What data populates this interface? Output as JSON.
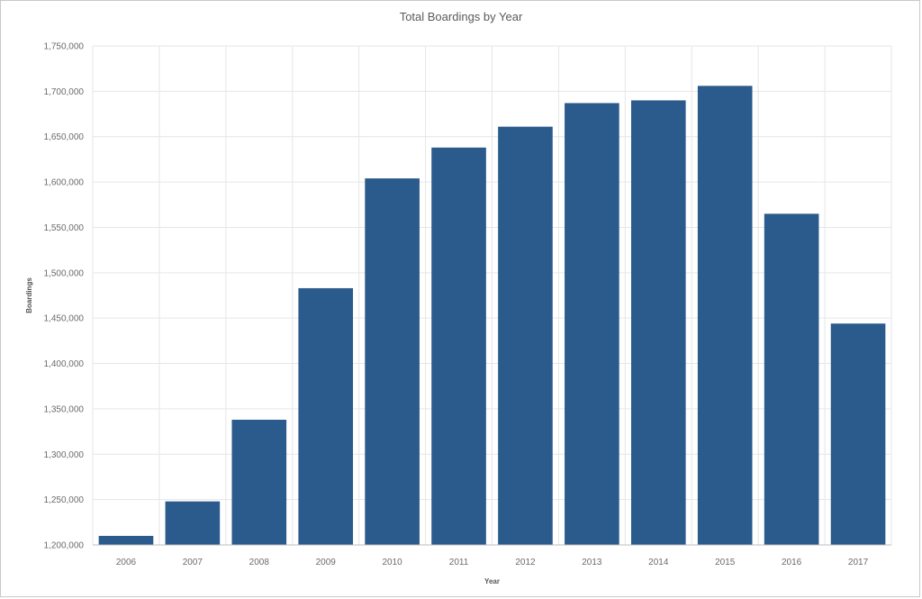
{
  "chart_data": {
    "type": "bar",
    "title": "Total Boardings by Year",
    "xlabel": "Year",
    "ylabel": "Boardings",
    "categories": [
      "2006",
      "2007",
      "2008",
      "2009",
      "2010",
      "2011",
      "2012",
      "2013",
      "2014",
      "2015",
      "2016",
      "2017"
    ],
    "values": [
      1210000,
      1248000,
      1338000,
      1483000,
      1604000,
      1638000,
      1661000,
      1687000,
      1690000,
      1706000,
      1565000,
      1444000
    ],
    "ylim": [
      1200000,
      1750000
    ],
    "yticks": [
      1200000,
      1250000,
      1300000,
      1350000,
      1400000,
      1450000,
      1500000,
      1550000,
      1600000,
      1650000,
      1700000,
      1750000
    ],
    "ytick_labels": [
      "1,200,000",
      "1,250,000",
      "1,300,000",
      "1,350,000",
      "1,400,000",
      "1,450,000",
      "1,500,000",
      "1,550,000",
      "1,600,000",
      "1,650,000",
      "1,700,000",
      "1,750,000"
    ],
    "grid": true,
    "bar_color": "#2b5a8c",
    "grid_color": "#e6e6e6"
  }
}
